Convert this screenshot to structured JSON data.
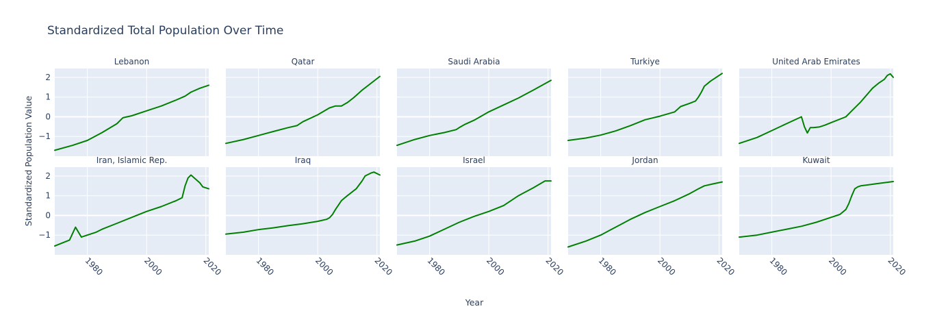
{
  "chart_data": {
    "type": "line",
    "title": "Standardized Total Population Over Time",
    "xlabel": "Year",
    "ylabel": "Standardized Population Value",
    "xlim": [
      1969,
      2021
    ],
    "ylim": [
      -2,
      2.45
    ],
    "x_ticks": [
      1980,
      2000,
      2020
    ],
    "y_ticks": [
      -1,
      0,
      1,
      2
    ],
    "grid": true,
    "line_color": "#008000",
    "panel_background": "#e5ecf6",
    "panels": [
      {
        "name": "Lebanon",
        "x": [
          1969,
          1975,
          1980,
          1985,
          1990,
          1992,
          1995,
          2000,
          2005,
          2010,
          2013,
          2015,
          2018,
          2021
        ],
        "y": [
          -1.7,
          -1.45,
          -1.2,
          -0.8,
          -0.35,
          -0.05,
          0.05,
          0.3,
          0.55,
          0.85,
          1.05,
          1.25,
          1.45,
          1.6
        ]
      },
      {
        "name": "Qatar",
        "x": [
          1969,
          1975,
          1980,
          1985,
          1990,
          1993,
          1995,
          2000,
          2004,
          2006,
          2008,
          2010,
          2012,
          2015,
          2021
        ],
        "y": [
          -1.35,
          -1.15,
          -0.95,
          -0.75,
          -0.55,
          -0.45,
          -0.25,
          0.1,
          0.45,
          0.55,
          0.55,
          0.72,
          0.95,
          1.35,
          2.05
        ]
      },
      {
        "name": "Saudi Arabia",
        "x": [
          1969,
          1975,
          1980,
          1985,
          1989,
          1990,
          1992,
          1995,
          2000,
          2005,
          2010,
          2015,
          2021
        ],
        "y": [
          -1.45,
          -1.15,
          -0.95,
          -0.8,
          -0.65,
          -0.55,
          -0.38,
          -0.18,
          0.25,
          0.6,
          0.95,
          1.35,
          1.85
        ]
      },
      {
        "name": "Turkiye",
        "x": [
          1969,
          1975,
          1980,
          1985,
          1990,
          1995,
          2000,
          2005,
          2007,
          2010,
          2012,
          2013,
          2014,
          2015,
          2017,
          2021
        ],
        "y": [
          -1.2,
          -1.08,
          -0.93,
          -0.72,
          -0.45,
          -0.15,
          0.03,
          0.25,
          0.52,
          0.68,
          0.8,
          1.0,
          1.25,
          1.55,
          1.8,
          2.2
        ]
      },
      {
        "name": "United Arab Emirates",
        "x": [
          1969,
          1975,
          1980,
          1985,
          1990,
          1991,
          1992,
          1993,
          1994,
          1996,
          1998,
          2000,
          2005,
          2007,
          2010,
          2012,
          2014,
          2016,
          2018,
          2019,
          2020,
          2021
        ],
        "y": [
          -1.35,
          -1.05,
          -0.7,
          -0.35,
          0.0,
          -0.5,
          -0.82,
          -0.55,
          -0.55,
          -0.52,
          -0.42,
          -0.3,
          0.0,
          0.3,
          0.75,
          1.1,
          1.45,
          1.7,
          1.9,
          2.1,
          2.18,
          2.0
        ]
      },
      {
        "name": "Iran, Islamic Rep.",
        "x": [
          1969,
          1974,
          1976,
          1978,
          1980,
          1983,
          1985,
          1990,
          1995,
          2000,
          2005,
          2010,
          2012,
          2013,
          2014,
          2015,
          2018,
          2019,
          2021
        ],
        "y": [
          -1.55,
          -1.25,
          -0.6,
          -1.1,
          -1.0,
          -0.85,
          -0.7,
          -0.4,
          -0.1,
          0.2,
          0.45,
          0.75,
          0.9,
          1.5,
          1.9,
          2.05,
          1.65,
          1.45,
          1.35
        ]
      },
      {
        "name": "Iraq",
        "x": [
          1969,
          1975,
          1980,
          1985,
          1990,
          1995,
          2000,
          2003,
          2004,
          2005,
          2006,
          2008,
          2010,
          2013,
          2015,
          2016,
          2018,
          2019,
          2021
        ],
        "y": [
          -0.95,
          -0.85,
          -0.72,
          -0.63,
          -0.52,
          -0.42,
          -0.3,
          -0.2,
          -0.12,
          0.05,
          0.3,
          0.75,
          1.0,
          1.35,
          1.75,
          2.0,
          2.15,
          2.2,
          2.05
        ]
      },
      {
        "name": "Israel",
        "x": [
          1969,
          1975,
          1980,
          1985,
          1990,
          1995,
          2000,
          2005,
          2010,
          2015,
          2019,
          2021
        ],
        "y": [
          -1.5,
          -1.3,
          -1.05,
          -0.7,
          -0.35,
          -0.05,
          0.2,
          0.5,
          1.0,
          1.4,
          1.75,
          1.75
        ]
      },
      {
        "name": "Jordan",
        "x": [
          1969,
          1975,
          1980,
          1985,
          1990,
          1995,
          2000,
          2005,
          2010,
          2013,
          2015,
          2018,
          2021
        ],
        "y": [
          -1.6,
          -1.3,
          -1.0,
          -0.6,
          -0.2,
          0.15,
          0.45,
          0.75,
          1.1,
          1.35,
          1.5,
          1.6,
          1.7
        ]
      },
      {
        "name": "Kuwait",
        "x": [
          1969,
          1975,
          1980,
          1985,
          1990,
          1995,
          2000,
          2003,
          2005,
          2006,
          2007,
          2008,
          2009,
          2010,
          2015,
          2021
        ],
        "y": [
          -1.1,
          -1.0,
          -0.85,
          -0.7,
          -0.55,
          -0.35,
          -0.1,
          0.05,
          0.3,
          0.6,
          1.0,
          1.35,
          1.45,
          1.5,
          1.6,
          1.72
        ]
      }
    ]
  }
}
